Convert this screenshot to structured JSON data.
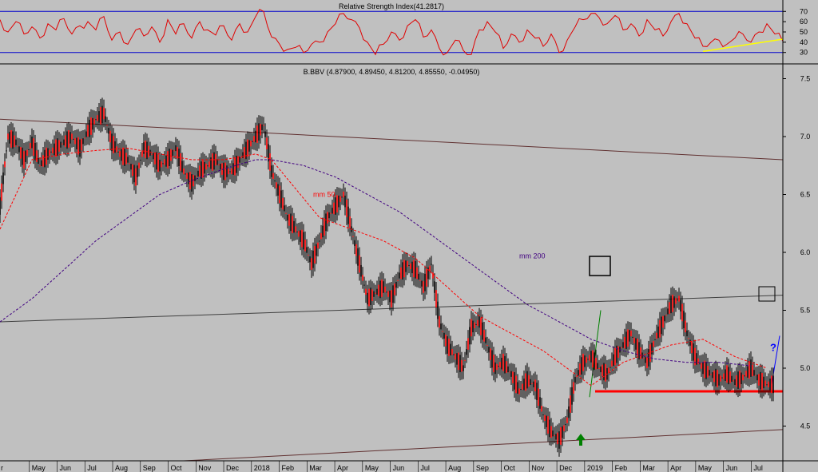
{
  "chart_data": [
    {
      "type": "line",
      "title": "Relative Strength Index(41.2817)",
      "y_ticks": [
        30,
        40,
        50,
        60,
        70
      ],
      "ylim": [
        22,
        78
      ],
      "reference_lines": [
        30,
        70
      ],
      "series": [
        {
          "color": "#e00000",
          "x": [
            0,
            10,
            20,
            30,
            40,
            50,
            60,
            70,
            80,
            90,
            100,
            110,
            120,
            130,
            140,
            150,
            160,
            170,
            180,
            190,
            200,
            210,
            220,
            230,
            240,
            250,
            260,
            270,
            280,
            290,
            300,
            310,
            320,
            330,
            340,
            350,
            360,
            370,
            380,
            390,
            400,
            410,
            420,
            430,
            440,
            450,
            460,
            470,
            480,
            490,
            500,
            510,
            520,
            530,
            540,
            550,
            560,
            570,
            580,
            590,
            600,
            610,
            620,
            630,
            640,
            650,
            660,
            670,
            680,
            690,
            700,
            710,
            720,
            730,
            740,
            750,
            760,
            770,
            780,
            790,
            800,
            810,
            820,
            830,
            840,
            850,
            860,
            870,
            880,
            890,
            900,
            910,
            920,
            930,
            940,
            950,
            960,
            970,
            980
          ],
          "values": [
            62,
            50,
            60,
            48,
            55,
            44,
            58,
            52,
            63,
            48,
            56,
            60,
            52,
            65,
            42,
            50,
            38,
            52,
            46,
            55,
            40,
            62,
            48,
            58,
            44,
            60,
            52,
            47,
            56,
            42,
            58,
            50,
            65,
            70,
            45,
            38,
            33,
            35,
            30,
            38,
            40,
            50,
            58,
            68,
            62,
            54,
            40,
            28,
            38,
            50,
            42,
            56,
            62,
            45,
            52,
            34,
            30,
            42,
            32,
            28,
            52,
            60,
            50,
            34,
            48,
            40,
            52,
            44,
            36,
            48,
            30,
            42,
            55,
            62,
            68,
            64,
            58,
            66,
            52,
            58,
            46,
            62,
            52,
            46,
            60,
            68,
            58,
            44,
            36,
            40,
            42,
            38,
            44,
            48,
            40,
            50,
            58,
            48,
            41
          ]
        }
      ],
      "trendlines": [
        {
          "color": "#ffff00",
          "from": [
            880,
            31
          ],
          "to": [
            980,
            43
          ]
        }
      ]
    },
    {
      "type": "line",
      "title": "B.BBV (4.87900, 4.89450, 4.81200, 4.85550, -0.04950)",
      "y_ticks": [
        "4.5",
        "5.0",
        "5.5",
        "6.0",
        "6.5",
        "7.0",
        "7.5"
      ],
      "ylim": [
        4.2,
        7.6
      ],
      "x_labels": [
        "r",
        "May",
        "Jun",
        "Jul",
        "Aug",
        "Sep",
        "Oct",
        "Nov",
        "Dec",
        "2018",
        "Feb",
        "Mar",
        "Apr",
        "May",
        "Jun",
        "Jul",
        "Aug",
        "Sep",
        "Oct",
        "Nov",
        "Dec",
        "2019",
        "Feb",
        "Mar",
        "Apr",
        "May",
        "Jun",
        "Jul"
      ],
      "series": [
        {
          "color": "#000000",
          "x": [
            0,
            10,
            20,
            30,
            40,
            50,
            60,
            70,
            80,
            90,
            100,
            110,
            120,
            130,
            140,
            150,
            160,
            170,
            180,
            190,
            200,
            210,
            220,
            230,
            240,
            250,
            260,
            270,
            280,
            290,
            300,
            310,
            320,
            330,
            340,
            350,
            360,
            370,
            380,
            390,
            400,
            410,
            420,
            430,
            440,
            450,
            460,
            470,
            480,
            490,
            500,
            510,
            520,
            530,
            540,
            550,
            560,
            570,
            580,
            590,
            600,
            610,
            620,
            630,
            640,
            650,
            660,
            670,
            680,
            690,
            700,
            710,
            720,
            730,
            740,
            750,
            760,
            770,
            780,
            790,
            800,
            810,
            820,
            830,
            840,
            850,
            860,
            870,
            880,
            890,
            900,
            910,
            920,
            930,
            940,
            950,
            960,
            970
          ],
          "values": [
            6.4,
            7.0,
            6.95,
            6.8,
            6.95,
            6.75,
            6.85,
            6.9,
            6.95,
            7.0,
            6.9,
            7.05,
            7.15,
            7.2,
            6.95,
            6.85,
            6.8,
            6.65,
            6.9,
            6.85,
            6.75,
            6.8,
            6.9,
            6.7,
            6.6,
            6.7,
            6.75,
            6.8,
            6.7,
            6.7,
            6.8,
            6.9,
            7.0,
            7.1,
            6.7,
            6.5,
            6.3,
            6.2,
            6.1,
            5.9,
            6.1,
            6.3,
            6.4,
            6.5,
            6.2,
            5.9,
            5.6,
            5.65,
            5.7,
            5.6,
            5.8,
            5.9,
            5.85,
            5.7,
            5.9,
            5.4,
            5.2,
            5.1,
            5.0,
            5.35,
            5.4,
            5.2,
            5.0,
            5.05,
            4.95,
            4.8,
            4.9,
            4.85,
            4.6,
            4.45,
            4.38,
            4.55,
            4.9,
            5.05,
            5.1,
            5.0,
            4.95,
            5.1,
            5.2,
            5.3,
            5.15,
            5.05,
            5.25,
            5.4,
            5.55,
            5.6,
            5.3,
            5.1,
            5.0,
            4.95,
            4.9,
            4.95,
            4.88,
            4.92,
            5.0,
            4.9,
            4.86,
            4.86
          ]
        },
        {
          "name": "mm 50",
          "color": "#ff0000",
          "x": [
            0,
            40,
            80,
            120,
            160,
            200,
            240,
            280,
            320,
            340,
            370,
            400,
            440,
            480,
            520,
            560,
            600,
            640,
            680,
            700,
            720,
            740,
            760,
            780,
            800,
            840,
            880,
            920,
            960
          ],
          "values": [
            6.2,
            6.8,
            6.85,
            6.88,
            6.9,
            6.85,
            6.8,
            6.8,
            6.85,
            6.8,
            6.55,
            6.3,
            6.2,
            6.1,
            5.95,
            5.7,
            5.45,
            5.3,
            5.15,
            5.05,
            4.95,
            4.85,
            4.95,
            5.05,
            5.1,
            5.2,
            5.25,
            5.1,
            5.0
          ]
        },
        {
          "name": "mm 200",
          "color": "#400080",
          "x": [
            0,
            40,
            80,
            120,
            160,
            200,
            240,
            280,
            320,
            340,
            380,
            420,
            460,
            500,
            540,
            580,
            620,
            660,
            700,
            740,
            780,
            820,
            860,
            900,
            940
          ],
          "values": [
            5.4,
            5.6,
            5.85,
            6.1,
            6.3,
            6.5,
            6.62,
            6.72,
            6.8,
            6.8,
            6.75,
            6.65,
            6.5,
            6.35,
            6.15,
            5.95,
            5.75,
            5.55,
            5.4,
            5.25,
            5.15,
            5.08,
            5.05,
            5.05,
            5.02
          ]
        }
      ],
      "trendlines": [
        {
          "color": "#603030",
          "from": [
            0,
            7.15
          ],
          "to": [
            980,
            6.8
          ]
        },
        {
          "color": "#404040",
          "from": [
            0,
            5.4
          ],
          "to": [
            980,
            5.63
          ]
        },
        {
          "color": "#603030",
          "from": [
            230,
            4.2
          ],
          "to": [
            980,
            4.47
          ]
        },
        {
          "color": "#ff0000",
          "from": [
            745,
            4.8
          ],
          "to": [
            980,
            4.8
          ]
        },
        {
          "color": "#008000",
          "from": [
            738,
            4.75
          ],
          "to": [
            752,
            5.5
          ]
        },
        {
          "color": "#0000ff",
          "from": [
            966,
            4.86
          ],
          "to": [
            976,
            5.28
          ]
        }
      ],
      "annotations": [
        {
          "text": "mm 50",
          "at": [
            392,
            6.48
          ],
          "color": "#ff0000"
        },
        {
          "text": "mm 200",
          "at": [
            650,
            5.95
          ],
          "color": "#400080"
        },
        {
          "text": "?",
          "at": [
            964,
            5.15
          ],
          "color": "#0000ff"
        }
      ]
    }
  ]
}
